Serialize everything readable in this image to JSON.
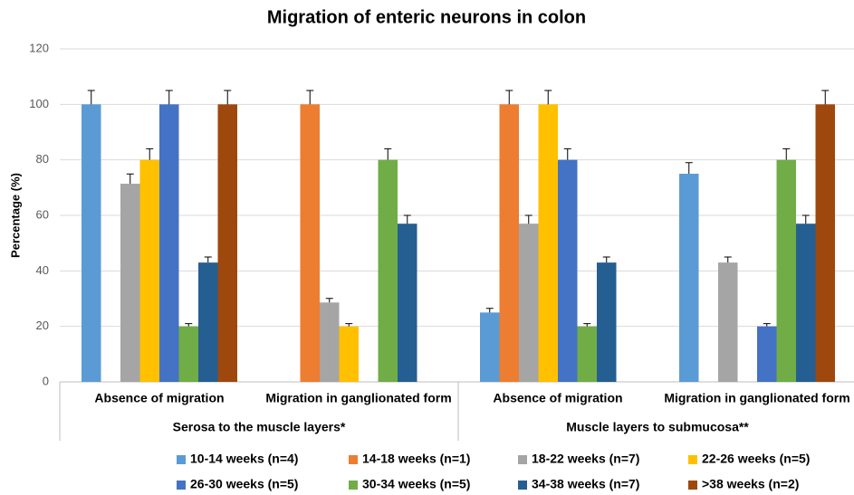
{
  "chart_data": {
    "type": "bar",
    "title": "Migration of enteric neurons in colon",
    "y_label": "Percentage (%)",
    "categories": [
      "Absence of migration",
      "Migration in ganglionated form",
      "Absence of migration",
      "Migration in ganglionated form"
    ],
    "group_labels": [
      "Serosa to the muscle layers*",
      "Muscle layers to submucosa**"
    ],
    "ylim": [
      0,
      120
    ],
    "yticks": [
      0,
      20,
      40,
      60,
      80,
      100,
      120
    ],
    "grid": true,
    "legend": "bottom",
    "series": [
      {
        "name": "10-14 weeks (n=4)",
        "color": "#5b9bd5",
        "values": [
          100,
          0,
          25,
          75
        ],
        "errors": [
          5,
          0,
          1.5,
          4
        ]
      },
      {
        "name": "14-18 weeks (n=1)",
        "color": "#ed7d31",
        "values": [
          0,
          100,
          100,
          0
        ],
        "errors": [
          0,
          5,
          5,
          0
        ]
      },
      {
        "name": "18-22 weeks (n=7)",
        "color": "#a5a5a5",
        "values": [
          71.4,
          28.6,
          57,
          43
        ],
        "errors": [
          3.5,
          1.5,
          3,
          2
        ]
      },
      {
        "name": "22-26 weeks (n=5)",
        "color": "#ffc000",
        "values": [
          80,
          20,
          100,
          0
        ],
        "errors": [
          4,
          1,
          5,
          0
        ]
      },
      {
        "name": "26-30 weeks (n=5)",
        "color": "#4472c4",
        "values": [
          100,
          0,
          80,
          20
        ],
        "errors": [
          5,
          0,
          4,
          1
        ]
      },
      {
        "name": "30-34 weeks (n=5)",
        "color": "#70ad47",
        "values": [
          20,
          80,
          20,
          80
        ],
        "errors": [
          1,
          4,
          1,
          4
        ]
      },
      {
        "name": "34-38 weeks (n=7)",
        "color": "#255e91",
        "values": [
          43,
          57,
          43,
          57
        ],
        "errors": [
          2,
          3,
          2,
          3
        ]
      },
      {
        "name": ">38 weeks (n=2)",
        "color": "#9e480e",
        "values": [
          100,
          0,
          0,
          100
        ],
        "errors": [
          5,
          0,
          0,
          5
        ]
      }
    ]
  }
}
